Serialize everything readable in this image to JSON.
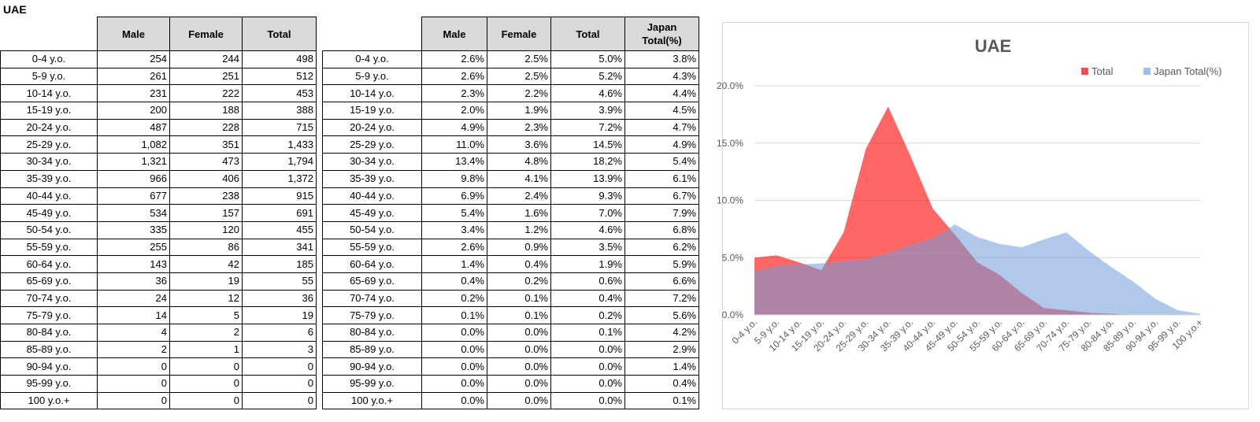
{
  "sheet_title": "UAE",
  "table1": {
    "headers": [
      "Male",
      "Female",
      "Total"
    ],
    "rows": [
      {
        "label": "0-4 y.o.",
        "male": "254",
        "female": "244",
        "total": "498"
      },
      {
        "label": "5-9 y.o.",
        "male": "261",
        "female": "251",
        "total": "512"
      },
      {
        "label": "10-14 y.o.",
        "male": "231",
        "female": "222",
        "total": "453"
      },
      {
        "label": "15-19 y.o.",
        "male": "200",
        "female": "188",
        "total": "388"
      },
      {
        "label": "20-24 y.o.",
        "male": "487",
        "female": "228",
        "total": "715"
      },
      {
        "label": "25-29 y.o.",
        "male": "1,082",
        "female": "351",
        "total": "1,433"
      },
      {
        "label": "30-34 y.o.",
        "male": "1,321",
        "female": "473",
        "total": "1,794"
      },
      {
        "label": "35-39 y.o.",
        "male": "966",
        "female": "406",
        "total": "1,372"
      },
      {
        "label": "40-44 y.o.",
        "male": "677",
        "female": "238",
        "total": "915"
      },
      {
        "label": "45-49 y.o.",
        "male": "534",
        "female": "157",
        "total": "691"
      },
      {
        "label": "50-54 y.o.",
        "male": "335",
        "female": "120",
        "total": "455"
      },
      {
        "label": "55-59 y.o.",
        "male": "255",
        "female": "86",
        "total": "341"
      },
      {
        "label": "60-64 y.o.",
        "male": "143",
        "female": "42",
        "total": "185"
      },
      {
        "label": "65-69 y.o.",
        "male": "36",
        "female": "19",
        "total": "55"
      },
      {
        "label": "70-74 y.o.",
        "male": "24",
        "female": "12",
        "total": "36"
      },
      {
        "label": "75-79 y.o.",
        "male": "14",
        "female": "5",
        "total": "19"
      },
      {
        "label": "80-84 y.o.",
        "male": "4",
        "female": "2",
        "total": "6"
      },
      {
        "label": "85-89 y.o.",
        "male": "2",
        "female": "1",
        "total": "3"
      },
      {
        "label": "90-94 y.o.",
        "male": "0",
        "female": "0",
        "total": "0"
      },
      {
        "label": "95-99 y.o.",
        "male": "0",
        "female": "0",
        "total": "0"
      },
      {
        "label": "100 y.o.+",
        "male": "0",
        "female": "0",
        "total": "0"
      }
    ]
  },
  "table2": {
    "headers": [
      "Male",
      "Female",
      "Total",
      "Japan Total(%)"
    ],
    "rows": [
      {
        "label": "0-4 y.o.",
        "male": "2.6%",
        "female": "2.5%",
        "total": "5.0%",
        "japan": "3.8%"
      },
      {
        "label": "5-9 y.o.",
        "male": "2.6%",
        "female": "2.5%",
        "total": "5.2%",
        "japan": "4.3%"
      },
      {
        "label": "10-14 y.o.",
        "male": "2.3%",
        "female": "2.2%",
        "total": "4.6%",
        "japan": "4.4%"
      },
      {
        "label": "15-19 y.o.",
        "male": "2.0%",
        "female": "1.9%",
        "total": "3.9%",
        "japan": "4.5%"
      },
      {
        "label": "20-24 y.o.",
        "male": "4.9%",
        "female": "2.3%",
        "total": "7.2%",
        "japan": "4.7%"
      },
      {
        "label": "25-29 y.o.",
        "male": "11.0%",
        "female": "3.6%",
        "total": "14.5%",
        "japan": "4.9%"
      },
      {
        "label": "30-34 y.o.",
        "male": "13.4%",
        "female": "4.8%",
        "total": "18.2%",
        "japan": "5.4%"
      },
      {
        "label": "35-39 y.o.",
        "male": "9.8%",
        "female": "4.1%",
        "total": "13.9%",
        "japan": "6.1%"
      },
      {
        "label": "40-44 y.o.",
        "male": "6.9%",
        "female": "2.4%",
        "total": "9.3%",
        "japan": "6.7%"
      },
      {
        "label": "45-49 y.o.",
        "male": "5.4%",
        "female": "1.6%",
        "total": "7.0%",
        "japan": "7.9%"
      },
      {
        "label": "50-54 y.o.",
        "male": "3.4%",
        "female": "1.2%",
        "total": "4.6%",
        "japan": "6.8%"
      },
      {
        "label": "55-59 y.o.",
        "male": "2.6%",
        "female": "0.9%",
        "total": "3.5%",
        "japan": "6.2%"
      },
      {
        "label": "60-64 y.o.",
        "male": "1.4%",
        "female": "0.4%",
        "total": "1.9%",
        "japan": "5.9%"
      },
      {
        "label": "65-69 y.o.",
        "male": "0.4%",
        "female": "0.2%",
        "total": "0.6%",
        "japan": "6.6%"
      },
      {
        "label": "70-74 y.o.",
        "male": "0.2%",
        "female": "0.1%",
        "total": "0.4%",
        "japan": "7.2%"
      },
      {
        "label": "75-79 y.o.",
        "male": "0.1%",
        "female": "0.1%",
        "total": "0.2%",
        "japan": "5.6%"
      },
      {
        "label": "80-84 y.o.",
        "male": "0.0%",
        "female": "0.0%",
        "total": "0.1%",
        "japan": "4.2%"
      },
      {
        "label": "85-89 y.o.",
        "male": "0.0%",
        "female": "0.0%",
        "total": "0.0%",
        "japan": "2.9%"
      },
      {
        "label": "90-94 y.o.",
        "male": "0.0%",
        "female": "0.0%",
        "total": "0.0%",
        "japan": "1.4%"
      },
      {
        "label": "95-99 y.o.",
        "male": "0.0%",
        "female": "0.0%",
        "total": "0.0%",
        "japan": "0.4%"
      },
      {
        "label": "100 y.o.+",
        "male": "0.0%",
        "female": "0.0%",
        "total": "0.0%",
        "japan": "0.1%"
      }
    ]
  },
  "chart_data": {
    "type": "area",
    "title": "UAE",
    "categories": [
      "0-4 y.o.",
      "5-9 y.o.",
      "10-14 y.o.",
      "15-19 y.o.",
      "20-24 y.o.",
      "25-29 y.o.",
      "30-34 y.o.",
      "35-39 y.o.",
      "40-44 y.o.",
      "45-49 y.o.",
      "50-54 y.o.",
      "55-59 y.o.",
      "60-64 y.o.",
      "65-69 y.o.",
      "70-74 y.o.",
      "75-79 y.o.",
      "80-84 y.o.",
      "85-89 y.o.",
      "90-94 y.o.",
      "95-99 y.o.",
      "100 y.o.+"
    ],
    "series": [
      {
        "name": "Total",
        "color": "#ff0000",
        "opacity": 0.6,
        "values": [
          5.0,
          5.2,
          4.6,
          3.9,
          7.2,
          14.5,
          18.2,
          13.9,
          9.3,
          7.0,
          4.6,
          3.5,
          1.9,
          0.6,
          0.4,
          0.2,
          0.1,
          0.0,
          0.0,
          0.0,
          0.0
        ]
      },
      {
        "name": "Japan Total(%)",
        "color": "#6f9bd8",
        "opacity": 0.55,
        "values": [
          3.8,
          4.3,
          4.4,
          4.5,
          4.7,
          4.9,
          5.4,
          6.1,
          6.7,
          7.9,
          6.8,
          6.2,
          5.9,
          6.6,
          7.2,
          5.6,
          4.2,
          2.9,
          1.4,
          0.4,
          0.1
        ]
      }
    ],
    "y_ticks": [
      "0.0%",
      "5.0%",
      "10.0%",
      "15.0%",
      "20.0%"
    ],
    "ylim": [
      0,
      20
    ],
    "grid": true,
    "legend": "top-right"
  }
}
